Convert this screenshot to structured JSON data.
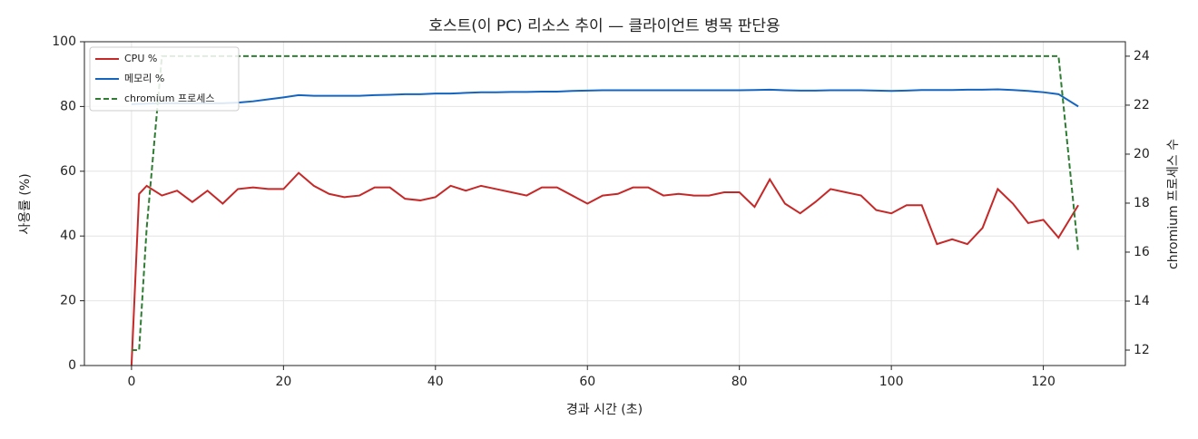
{
  "chart_data": {
    "type": "line",
    "title": "호스트(이 PC) 리소스 추이 — 클라이언트 병목 판단용",
    "x_label": "경과 시간 (초)",
    "y_label": "사용률 (%)",
    "y2_label": "chromium 프로세스 수",
    "x": [
      0,
      1,
      2,
      4,
      6,
      8,
      10,
      12,
      14,
      16,
      18,
      20,
      22,
      24,
      26,
      28,
      30,
      32,
      34,
      36,
      38,
      40,
      42,
      44,
      46,
      48,
      50,
      52,
      54,
      56,
      58,
      60,
      62,
      64,
      66,
      68,
      70,
      72,
      74,
      76,
      78,
      80,
      82,
      84,
      86,
      88,
      90,
      92,
      94,
      96,
      98,
      100,
      102,
      104,
      106,
      108,
      110,
      112,
      114,
      116,
      118,
      120,
      122,
      124.6
    ],
    "series": [
      {
        "name": "CPU %",
        "color": "#c62828",
        "linestyle": "solid",
        "axis": "y",
        "values": [
          0,
          53,
          55.5,
          52.5,
          54,
          50.5,
          54,
          50,
          54.5,
          55,
          54.5,
          54.5,
          59.5,
          55.5,
          53,
          52,
          52.5,
          55,
          55,
          51.5,
          51,
          52,
          55.5,
          54,
          55.5,
          54.5,
          53.5,
          52.5,
          55,
          55,
          52.5,
          50,
          52.5,
          53,
          55,
          55,
          52.5,
          53,
          52.5,
          52.5,
          53.5,
          53.5,
          49,
          57.5,
          50,
          47,
          50.5,
          54.5,
          53.5,
          52.5,
          48,
          47,
          49.5,
          49.5,
          37.5,
          39,
          37.5,
          42.5,
          54.5,
          50,
          44,
          45,
          39.5,
          49.5
        ]
      },
      {
        "name": "메모리 %",
        "color": "#1565c0",
        "linestyle": "solid",
        "axis": "y",
        "values": [
          80.7,
          80.8,
          80.9,
          81,
          81,
          81,
          81,
          81,
          81.2,
          81.6,
          82.2,
          82.8,
          83.5,
          83.3,
          83.3,
          83.3,
          83.3,
          83.5,
          83.6,
          83.8,
          83.8,
          84,
          84,
          84.2,
          84.4,
          84.4,
          84.5,
          84.5,
          84.6,
          84.6,
          84.8,
          84.9,
          85,
          85,
          85,
          85,
          85,
          85,
          85,
          85,
          85,
          85,
          85.1,
          85.2,
          85,
          84.9,
          84.9,
          85,
          85,
          85,
          84.9,
          84.8,
          84.9,
          85.1,
          85.1,
          85.1,
          85.2,
          85.2,
          85.3,
          85.1,
          84.8,
          84.4,
          83.8,
          80
        ]
      },
      {
        "name": "chromium 프로세스",
        "color": "#2e7d32",
        "linestyle": "dashed",
        "axis": "y2",
        "values": [
          12,
          12,
          17,
          24,
          24,
          24,
          24,
          24,
          24,
          24,
          24,
          24,
          24,
          24,
          24,
          24,
          24,
          24,
          24,
          24,
          24,
          24,
          24,
          24,
          24,
          24,
          24,
          24,
          24,
          24,
          24,
          24,
          24,
          24,
          24,
          24,
          24,
          24,
          24,
          24,
          24,
          24,
          24,
          24,
          24,
          24,
          24,
          24,
          24,
          24,
          24,
          24,
          24,
          24,
          24,
          24,
          24,
          24,
          24,
          24,
          24,
          24,
          24,
          16
        ]
      }
    ],
    "xlim": [
      -6.2,
      130.8
    ],
    "xticks": [
      0,
      20,
      40,
      60,
      80,
      100,
      120
    ],
    "ylim": [
      0,
      100
    ],
    "yticks": [
      0,
      20,
      40,
      60,
      80,
      100
    ],
    "y2lim": [
      11.37,
      24.59
    ],
    "y2ticks": [
      12,
      14,
      16,
      18,
      20,
      22,
      24
    ],
    "grid": true,
    "legend": "upper left"
  }
}
